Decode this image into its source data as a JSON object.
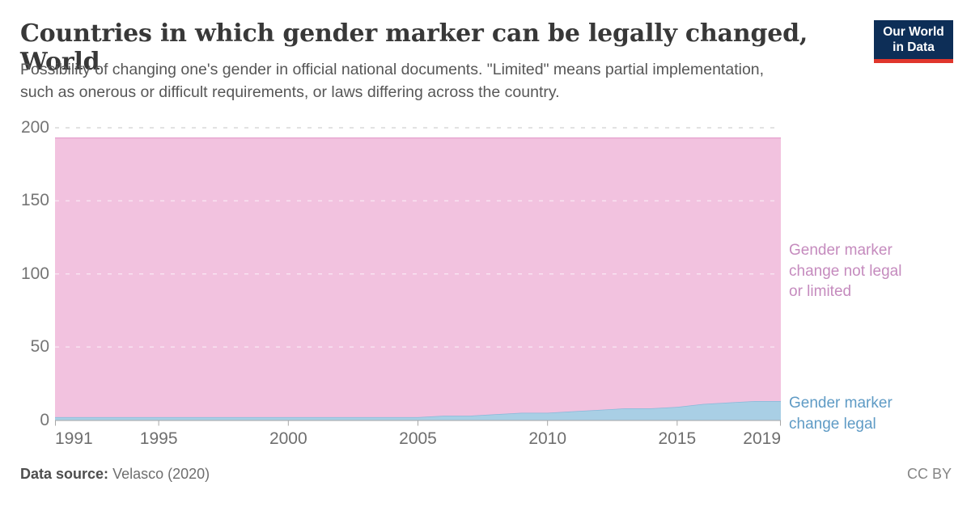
{
  "header": {
    "title": "Countries in which gender marker can be legally changed, World",
    "subtitle": "Possibility of changing one's gender in official national documents. \"Limited\" means partial implementation, such as onerous or difficult requirements, or laws differing across the country.",
    "logo": {
      "line1": "Our World",
      "line2": "in Data",
      "bg_color": "#0d2e57",
      "bar_color": "#e0362c"
    }
  },
  "chart_data": {
    "type": "area",
    "stacked": true,
    "title": "Countries in which gender marker can be legally changed, World",
    "xlabel": "",
    "ylabel": "",
    "ylim": [
      0,
      200
    ],
    "yticks": [
      0,
      50,
      100,
      150,
      200
    ],
    "xticks": [
      1991,
      1995,
      2000,
      2005,
      2010,
      2015,
      2019
    ],
    "grid": "dashed",
    "legend_position": "right-of-plot",
    "x": [
      1991,
      1992,
      1993,
      1994,
      1995,
      1996,
      1997,
      1998,
      1999,
      2000,
      2001,
      2002,
      2003,
      2004,
      2005,
      2006,
      2007,
      2008,
      2009,
      2010,
      2011,
      2012,
      2013,
      2014,
      2015,
      2016,
      2017,
      2018,
      2019
    ],
    "series": [
      {
        "name": "Gender marker change legal",
        "label_lines": [
          "Gender marker",
          "change legal"
        ],
        "color": "#a9cfe5",
        "line_color": "#88b9d9",
        "label_color": "#5f9bc5",
        "values": [
          2,
          2,
          2,
          2,
          2,
          2,
          2,
          2,
          2,
          2,
          2,
          2,
          2,
          2,
          2,
          3,
          3,
          4,
          5,
          5,
          6,
          7,
          8,
          8,
          9,
          11,
          12,
          13,
          13
        ]
      },
      {
        "name": "Gender marker change not legal or limited",
        "label_lines": [
          "Gender marker",
          "change not legal",
          "or limited"
        ],
        "color": "#f2c2df",
        "line_color": "#e6a7d1",
        "label_color": "#c58bbe",
        "values": [
          191,
          191,
          191,
          191,
          191,
          191,
          191,
          191,
          191,
          191,
          191,
          191,
          191,
          191,
          191,
          190,
          190,
          189,
          188,
          188,
          187,
          186,
          185,
          185,
          184,
          182,
          181,
          180,
          180
        ]
      }
    ],
    "total_countries": 193
  },
  "footer": {
    "source_label": "Data source:",
    "source_value": "Velasco (2020)",
    "license": "CC BY"
  }
}
